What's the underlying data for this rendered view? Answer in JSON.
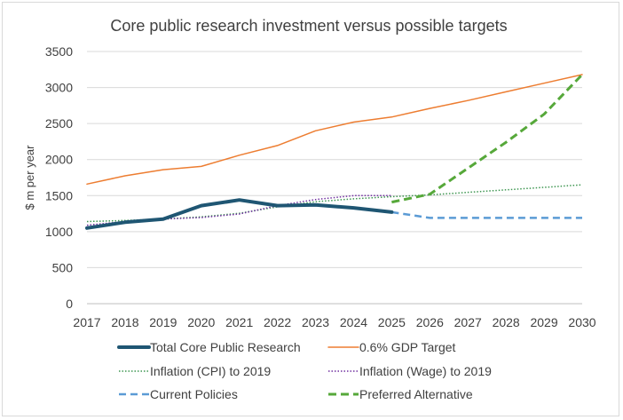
{
  "chart_data": {
    "type": "line",
    "title": "Core public research investment versus possible targets",
    "xlabel": "",
    "ylabel": "$ m per year",
    "x": [
      "2017",
      "2018",
      "2019",
      "2020",
      "2021",
      "2022",
      "2023",
      "2024",
      "2025",
      "2026",
      "2027",
      "2028",
      "2029",
      "2030"
    ],
    "ylim": [
      0,
      3500
    ],
    "yticks": [
      "0",
      "500",
      "1000",
      "1500",
      "2000",
      "2500",
      "3000",
      "3500"
    ],
    "grid": "horizontal",
    "legend_position": "bottom",
    "series": [
      {
        "name": "Total Core Public Research",
        "color": "#1f5673",
        "style": "solid-thick",
        "x": [
          "2017",
          "2018",
          "2019",
          "2020",
          "2021",
          "2022",
          "2023",
          "2024",
          "2025"
        ],
        "values": [
          1050,
          1130,
          1175,
          1360,
          1440,
          1360,
          1370,
          1330,
          1270
        ]
      },
      {
        "name": "0.6% GDP Target",
        "color": "#ed7d31",
        "style": "solid-thin",
        "x": [
          "2017",
          "2018",
          "2019",
          "2020",
          "2021",
          "2022",
          "2023",
          "2024",
          "2025",
          "2026",
          "2027",
          "2028",
          "2029",
          "2030"
        ],
        "values": [
          1660,
          1775,
          1860,
          1905,
          2060,
          2195,
          2400,
          2520,
          2590,
          2710,
          2820,
          2940,
          3060,
          3180
        ]
      },
      {
        "name": "Inflation (CPI) to 2019",
        "color": "#3e9651",
        "style": "dotted",
        "x": [
          "2017",
          "2018",
          "2019",
          "2020",
          "2021",
          "2022",
          "2023",
          "2024",
          "2025",
          "2026",
          "2027",
          "2028",
          "2029",
          "2030"
        ],
        "values": [
          1140,
          1155,
          1175,
          1205,
          1255,
          1345,
          1415,
          1455,
          1485,
          1510,
          1545,
          1580,
          1615,
          1650
        ]
      },
      {
        "name": "Inflation (Wage) to 2019",
        "color": "#7030a0",
        "style": "dotted",
        "x": [
          "2017",
          "2018",
          "2019",
          "2020",
          "2021",
          "2022",
          "2023",
          "2024",
          "2025"
        ],
        "values": [
          1090,
          1140,
          1175,
          1195,
          1245,
          1360,
          1445,
          1500,
          1500
        ]
      },
      {
        "name": "Current Policies",
        "color": "#5b9bd5",
        "style": "dashed",
        "x": [
          "2025",
          "2026",
          "2027",
          "2028",
          "2029",
          "2030"
        ],
        "values": [
          1270,
          1190,
          1190,
          1190,
          1190,
          1190
        ]
      },
      {
        "name": "Preferred Alternative",
        "color": "#56a83a",
        "style": "dashed-thick",
        "x": [
          "2025",
          "2026",
          "2027",
          "2028",
          "2029",
          "2030"
        ],
        "values": [
          1410,
          1520,
          1880,
          2240,
          2630,
          3180
        ]
      }
    ]
  }
}
